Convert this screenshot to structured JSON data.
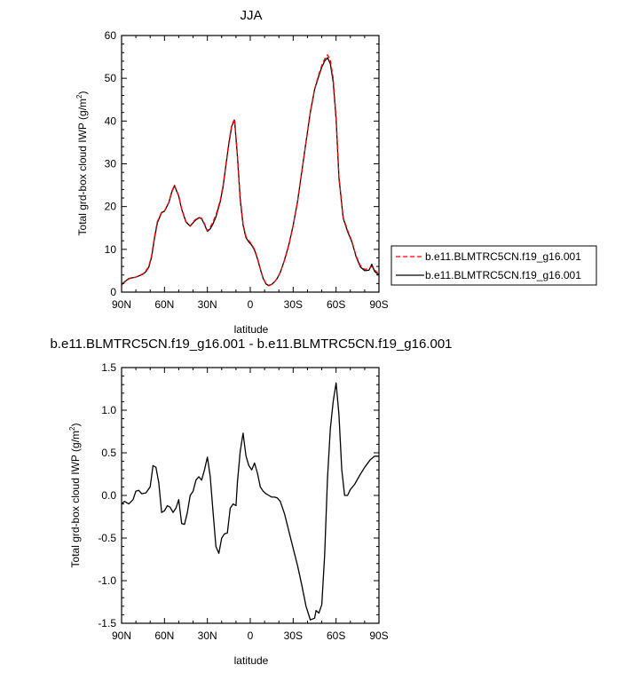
{
  "chart_data": [
    {
      "type": "line",
      "title": "JJA",
      "xlabel": "latitude",
      "ylabel": "Total grd-box cloud IWP (g/m²)",
      "ylabel_parts": {
        "main": "Total grd-box cloud IWP (g/m",
        "sup": "2",
        "end": ")"
      },
      "xlim": [
        90,
        -90
      ],
      "ylim": [
        0,
        60
      ],
      "xticks": [
        90,
        60,
        30,
        0,
        -30,
        -60,
        -90
      ],
      "xtick_labels": [
        "90N",
        "60N",
        "30N",
        "0",
        "30S",
        "60S",
        "90S"
      ],
      "yticks": [
        0,
        10,
        20,
        30,
        40,
        50,
        60
      ],
      "ytick_labels": [
        "0",
        "10",
        "20",
        "30",
        "40",
        "50",
        "60"
      ],
      "legend_position": "right",
      "x": [
        90,
        85,
        80,
        77,
        75,
        73,
        71,
        69,
        67,
        65,
        62,
        60,
        57,
        55,
        53,
        50,
        48,
        45,
        42,
        39,
        36,
        34,
        32,
        30,
        28,
        26,
        24,
        21,
        19,
        17,
        15,
        13,
        11,
        9,
        7,
        5,
        3,
        1,
        -1,
        -3,
        -5,
        -7,
        -9,
        -11,
        -13,
        -15,
        -17,
        -19,
        -21,
        -24,
        -27,
        -30,
        -33,
        -36,
        -39,
        -42,
        -45,
        -48,
        -50,
        -52,
        -54,
        -56,
        -58,
        -60,
        -62,
        -65,
        -68,
        -71,
        -74,
        -77,
        -80,
        -83,
        -85,
        -87,
        -90
      ],
      "series": [
        {
          "name": "b.e11.BLMTRC5CN.f19_g16.001",
          "color": "#ff0000",
          "dash": "dashed",
          "values": [
            1.7,
            3.1,
            3.5,
            4.0,
            4.3,
            5.0,
            6.0,
            8.5,
            13.0,
            16.5,
            18.7,
            19.0,
            21.0,
            23.5,
            25.0,
            22.5,
            19.5,
            16.5,
            15.5,
            16.8,
            17.5,
            17.3,
            16.0,
            14.3,
            15.2,
            16.5,
            18.0,
            21.5,
            25.0,
            30.0,
            35.0,
            39.0,
            40.5,
            32.0,
            22.0,
            16.0,
            13.0,
            12.0,
            11.2,
            10.0,
            8.0,
            5.5,
            3.3,
            2.0,
            1.6,
            1.8,
            2.4,
            3.3,
            4.6,
            7.5,
            11.0,
            15.5,
            21.0,
            28.0,
            35.0,
            42.0,
            47.5,
            51.0,
            53.0,
            54.5,
            55.5,
            54.3,
            50.0,
            41.0,
            27.0,
            17.5,
            14.5,
            12.0,
            8.5,
            6.2,
            5.3,
            5.5,
            6.0,
            5.2,
            4.2
          ]
        },
        {
          "name": "b.e11.BLMTRC5CN.f19_g16.001",
          "color": "#000000",
          "dash": "solid",
          "values": [
            1.8,
            3.2,
            3.5,
            3.9,
            4.2,
            4.8,
            5.8,
            8.2,
            12.6,
            16.2,
            18.6,
            18.9,
            20.9,
            23.3,
            24.9,
            22.4,
            19.4,
            16.4,
            15.4,
            16.6,
            17.4,
            17.2,
            15.8,
            14.2,
            14.8,
            16.0,
            17.6,
            21.2,
            24.7,
            29.7,
            34.6,
            38.8,
            40.2,
            31.8,
            21.6,
            15.7,
            12.7,
            11.7,
            11.0,
            9.8,
            7.8,
            5.4,
            3.2,
            1.9,
            1.5,
            1.8,
            2.4,
            3.3,
            4.6,
            7.6,
            11.1,
            15.6,
            21.1,
            28.1,
            35.1,
            42.1,
            47.4,
            50.6,
            52.6,
            54.0,
            54.8,
            53.4,
            49.2,
            40.5,
            26.8,
            17.3,
            14.2,
            11.8,
            8.3,
            5.9,
            5.0,
            5.1,
            6.5,
            4.8,
            4.0
          ]
        }
      ]
    },
    {
      "type": "line",
      "title": "b.e11.BLMTRC5CN.f19_g16.001 - b.e11.BLMTRC5CN.f19_g16.001",
      "xlabel": "latitude",
      "ylabel": "Total grd-box cloud IWP (g/m²)",
      "ylabel_parts": {
        "main": "Total grd-box cloud IWP (g/m",
        "sup": "2",
        "end": ")"
      },
      "xlim": [
        90,
        -90
      ],
      "ylim": [
        -1.5,
        1.5
      ],
      "xticks": [
        90,
        60,
        30,
        0,
        -30,
        -60,
        -90
      ],
      "xtick_labels": [
        "90N",
        "60N",
        "30N",
        "0",
        "30S",
        "60S",
        "90S"
      ],
      "yticks": [
        1.5,
        1.0,
        0.5,
        0.0,
        -0.5,
        -1.0,
        -1.5
      ],
      "ytick_labels": [
        "1.5",
        "1.0",
        "0.5",
        "0.0",
        "-0.5",
        "-1.0",
        "-1.5"
      ],
      "x": [
        90,
        88,
        85,
        82,
        80,
        78,
        76,
        73,
        70,
        68,
        66,
        64,
        62,
        60,
        58,
        56,
        54,
        52,
        50,
        48,
        46,
        44,
        42,
        40,
        38,
        36,
        34,
        32,
        30,
        28,
        26,
        24,
        22,
        20,
        18,
        16,
        14,
        12,
        10,
        9,
        7,
        5,
        3,
        1,
        -1,
        -3,
        -5,
        -7,
        -9,
        -11,
        -13,
        -15,
        -17,
        -19,
        -21,
        -24,
        -27,
        -30,
        -33,
        -36,
        -39,
        -42,
        -45,
        -46,
        -48,
        -50,
        -52,
        -54,
        -56,
        -58,
        -60,
        -62,
        -64,
        -66,
        -68,
        -70,
        -73,
        -76,
        -80,
        -84,
        -87,
        -90
      ],
      "series": [
        {
          "name": "",
          "color": "#000000",
          "dash": "solid",
          "values": [
            -0.1,
            -0.07,
            -0.1,
            -0.05,
            0.05,
            0.06,
            0.02,
            0.03,
            0.1,
            0.35,
            0.33,
            0.15,
            -0.2,
            -0.18,
            -0.12,
            -0.14,
            -0.2,
            -0.15,
            -0.05,
            -0.33,
            -0.34,
            -0.2,
            0.0,
            0.05,
            0.18,
            0.22,
            0.18,
            0.3,
            0.45,
            0.22,
            -0.2,
            -0.6,
            -0.68,
            -0.5,
            -0.45,
            -0.44,
            -0.15,
            -0.1,
            -0.12,
            0.15,
            0.52,
            0.73,
            0.46,
            0.35,
            0.3,
            0.38,
            0.26,
            0.1,
            0.05,
            0.02,
            0.0,
            -0.02,
            -0.02,
            -0.03,
            -0.07,
            -0.22,
            -0.42,
            -0.62,
            -0.82,
            -1.05,
            -1.3,
            -1.46,
            -1.44,
            -1.35,
            -1.38,
            -1.28,
            -0.7,
            0.2,
            0.78,
            1.1,
            1.32,
            0.95,
            0.3,
            0.0,
            0.0,
            0.07,
            0.13,
            0.22,
            0.33,
            0.42,
            0.46,
            0.46
          ]
        }
      ]
    }
  ]
}
